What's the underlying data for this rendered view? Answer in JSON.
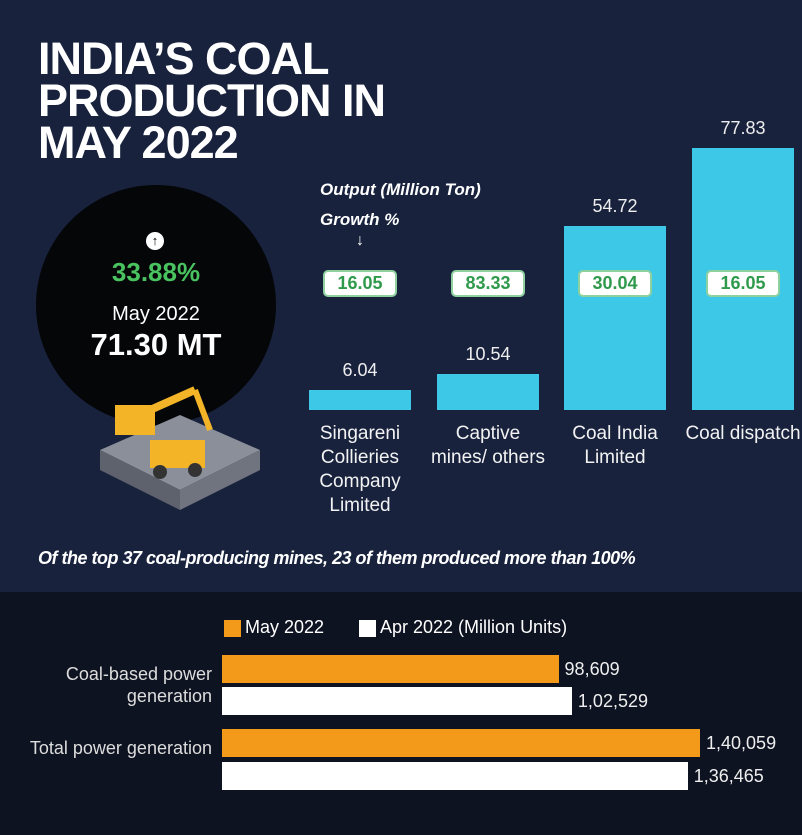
{
  "chart_data": [
    {
      "type": "bar",
      "title": "INDIA’S COAL PRODUCTION IN MAY 2022",
      "value_label_title": "Output (Million Ton)",
      "growth_title": "Growth %",
      "categories": [
        "Singareni Collieries Company Limited",
        "Captive mines/ others",
        "Coal India Limited",
        "Coal dispatch"
      ],
      "values": [
        6.04,
        10.54,
        54.72,
        77.83
      ],
      "growth": [
        16.05,
        83.33,
        30.04,
        16.05
      ],
      "color": "#3ec8e8",
      "note": "Of the top 37 coal-producing mines, 23 of them produced more than 100%"
    },
    {
      "type": "hbar",
      "categories": [
        "Coal-based power generation",
        "Total power generation"
      ],
      "series": [
        {
          "name": "May 2022",
          "color": "#f39a1b",
          "values": [
            98609,
            140059
          ],
          "value_labels": [
            "98,609",
            "1,40,059"
          ]
        },
        {
          "name": "Apr 2022 (Million Units)",
          "color": "#ffffff",
          "values": [
            102529,
            136465
          ],
          "value_labels": [
            "1,02,529",
            "1,36,465"
          ]
        }
      ]
    }
  ],
  "highlight": {
    "growth": "33.88%",
    "month": "May 2022",
    "total": "71.30 MT"
  }
}
